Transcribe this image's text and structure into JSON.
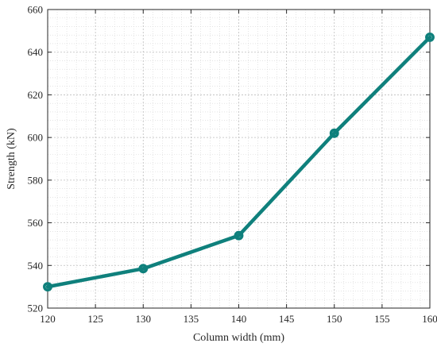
{
  "chart_data": {
    "type": "line",
    "xlabel": "Column width (mm)",
    "ylabel": "Strength (kN)",
    "xlim": [
      120,
      160
    ],
    "ylim": [
      520,
      660
    ],
    "xticks": [
      120,
      125,
      130,
      135,
      140,
      145,
      150,
      155,
      160
    ],
    "yticks": [
      520,
      540,
      560,
      580,
      600,
      620,
      640,
      660
    ],
    "grid": true,
    "minor_grid": true,
    "series": [
      {
        "x": [
          120,
          130,
          140,
          150,
          160
        ],
        "y": [
          530,
          538.5,
          554,
          602,
          647
        ],
        "color": "#0f807c",
        "marker": "circle"
      }
    ]
  }
}
